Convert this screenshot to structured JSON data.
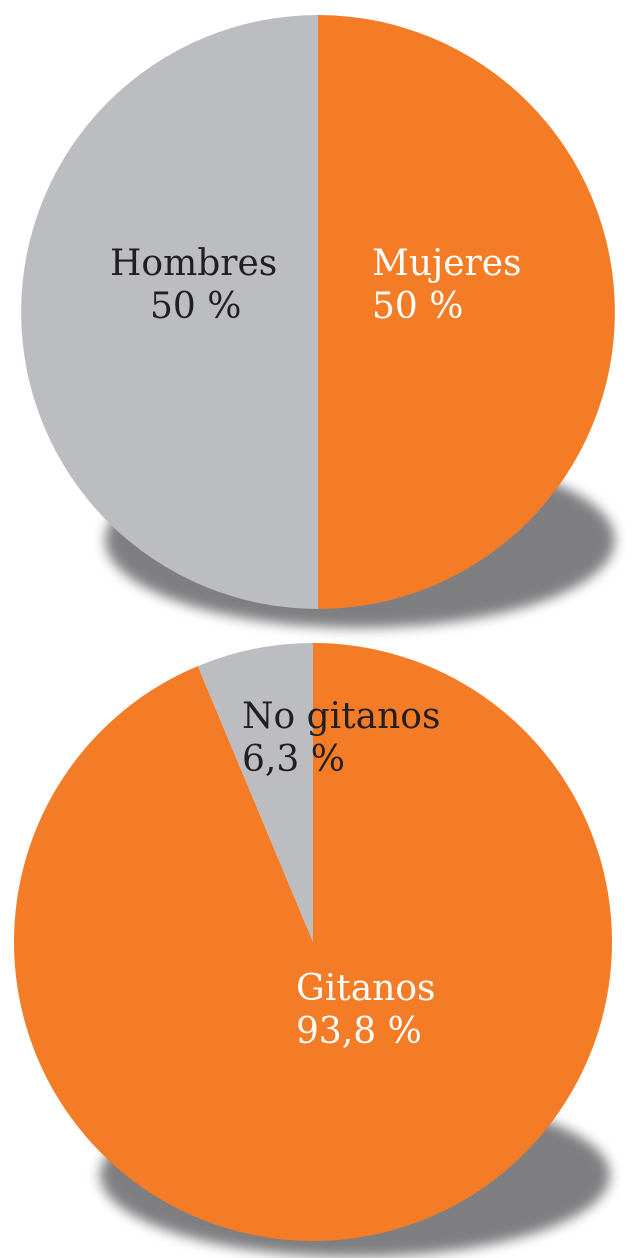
{
  "chart_data": [
    {
      "type": "pie",
      "title": "",
      "slices": [
        {
          "label": "Mujeres",
          "value": 50,
          "value_label": "50 %",
          "color": "#f47c26",
          "label_color": "#ffffff"
        },
        {
          "label": "Hombres",
          "value": 50,
          "value_label": "50 %",
          "color": "#bcbdc0",
          "label_color": "#231f20"
        }
      ],
      "legend": "none",
      "shadow_color": "#7f7f82"
    },
    {
      "type": "pie",
      "title": "",
      "slices": [
        {
          "label": "Gitanos",
          "value": 93.8,
          "value_label": "93,8 %",
          "color": "#f47c26",
          "label_color": "#ffffff"
        },
        {
          "label": "No gitanos",
          "value": 6.3,
          "value_label": "6,3 %",
          "color": "#bcbdc0",
          "label_color": "#231f20"
        }
      ],
      "legend": "none",
      "shadow_color": "#7f7f82"
    }
  ]
}
